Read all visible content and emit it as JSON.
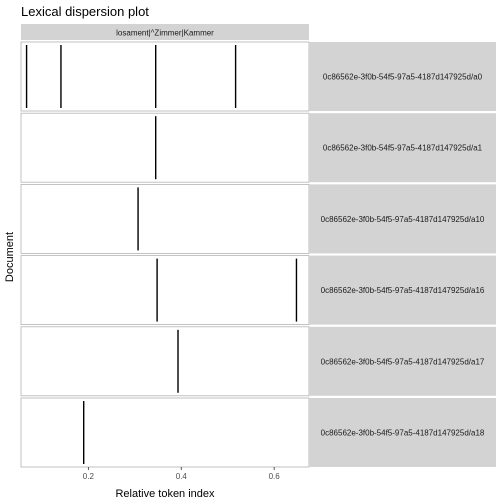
{
  "chart_data": {
    "type": "dispersion",
    "title": "Lexical dispersion plot",
    "facet_label": "losament|^Zimmer|Kammer",
    "xlabel": "Relative token index",
    "ylabel": "Document",
    "x_range": [
      0.055,
      0.675
    ],
    "x_ticks": [
      0.2,
      0.4,
      0.6
    ],
    "x_tick_labels": [
      "0.2",
      "0.4",
      "0.6"
    ],
    "grid": false,
    "documents": [
      {
        "name": "0c86562e-3f0b-54f5-97a5-4187d147925d/a0",
        "hits": [
          0.067,
          0.141,
          0.345,
          0.517
        ]
      },
      {
        "name": "0c86562e-3f0b-54f5-97a5-4187d147925d/a1",
        "hits": [
          0.345
        ]
      },
      {
        "name": "0c86562e-3f0b-54f5-97a5-4187d147925d/a10",
        "hits": [
          0.307
        ]
      },
      {
        "name": "0c86562e-3f0b-54f5-97a5-4187d147925d/a16",
        "hits": [
          0.348,
          0.648
        ]
      },
      {
        "name": "0c86562e-3f0b-54f5-97a5-4187d147925d/a17",
        "hits": [
          0.393
        ]
      },
      {
        "name": "0c86562e-3f0b-54f5-97a5-4187d147925d/a18",
        "hits": [
          0.19
        ]
      }
    ]
  },
  "colors": {
    "strip_bg": "#d3d3d3",
    "panel_bg": "#ffffff",
    "panel_border": "#b3b3b3",
    "mark": "#000000",
    "text": "#1a1a1a"
  }
}
